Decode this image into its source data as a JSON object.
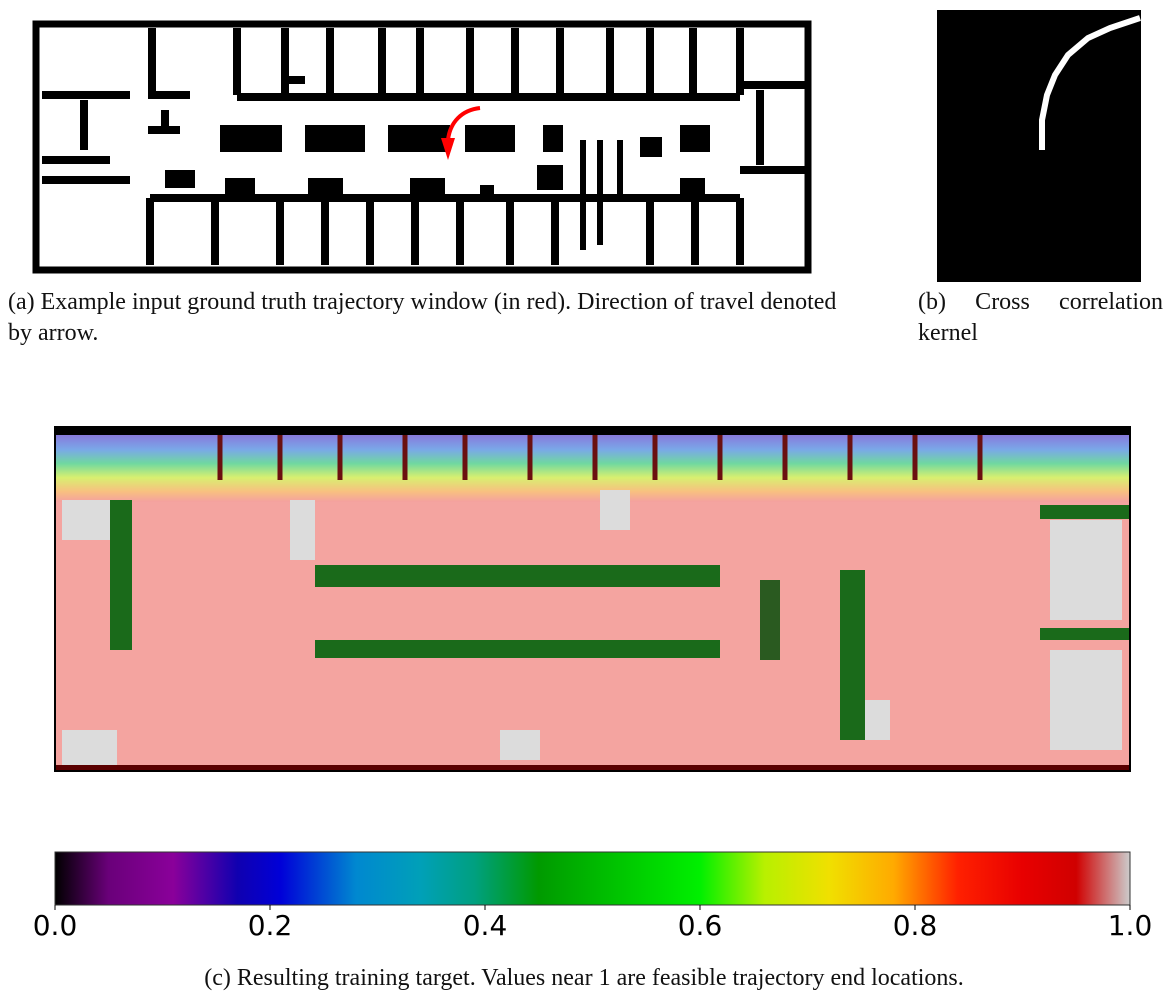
{
  "figure": {
    "panel_a": {
      "caption": "(a) Example input ground truth trajectory window (in red). Direction of travel denoted by arrow."
    },
    "panel_b": {
      "caption": "(b) Cross correlation kernel"
    },
    "panel_c": {
      "caption": "(c) Resulting training target. Values near 1 are feasible trajectory end locations.",
      "colorbar": {
        "lim": [
          0,
          1
        ],
        "ticks": [
          {
            "value": 0,
            "label": "0.0"
          },
          0.2,
          0.4,
          0.6,
          0.8,
          {
            "value": 1,
            "label": "1.0"
          }
        ]
      }
    }
  }
}
